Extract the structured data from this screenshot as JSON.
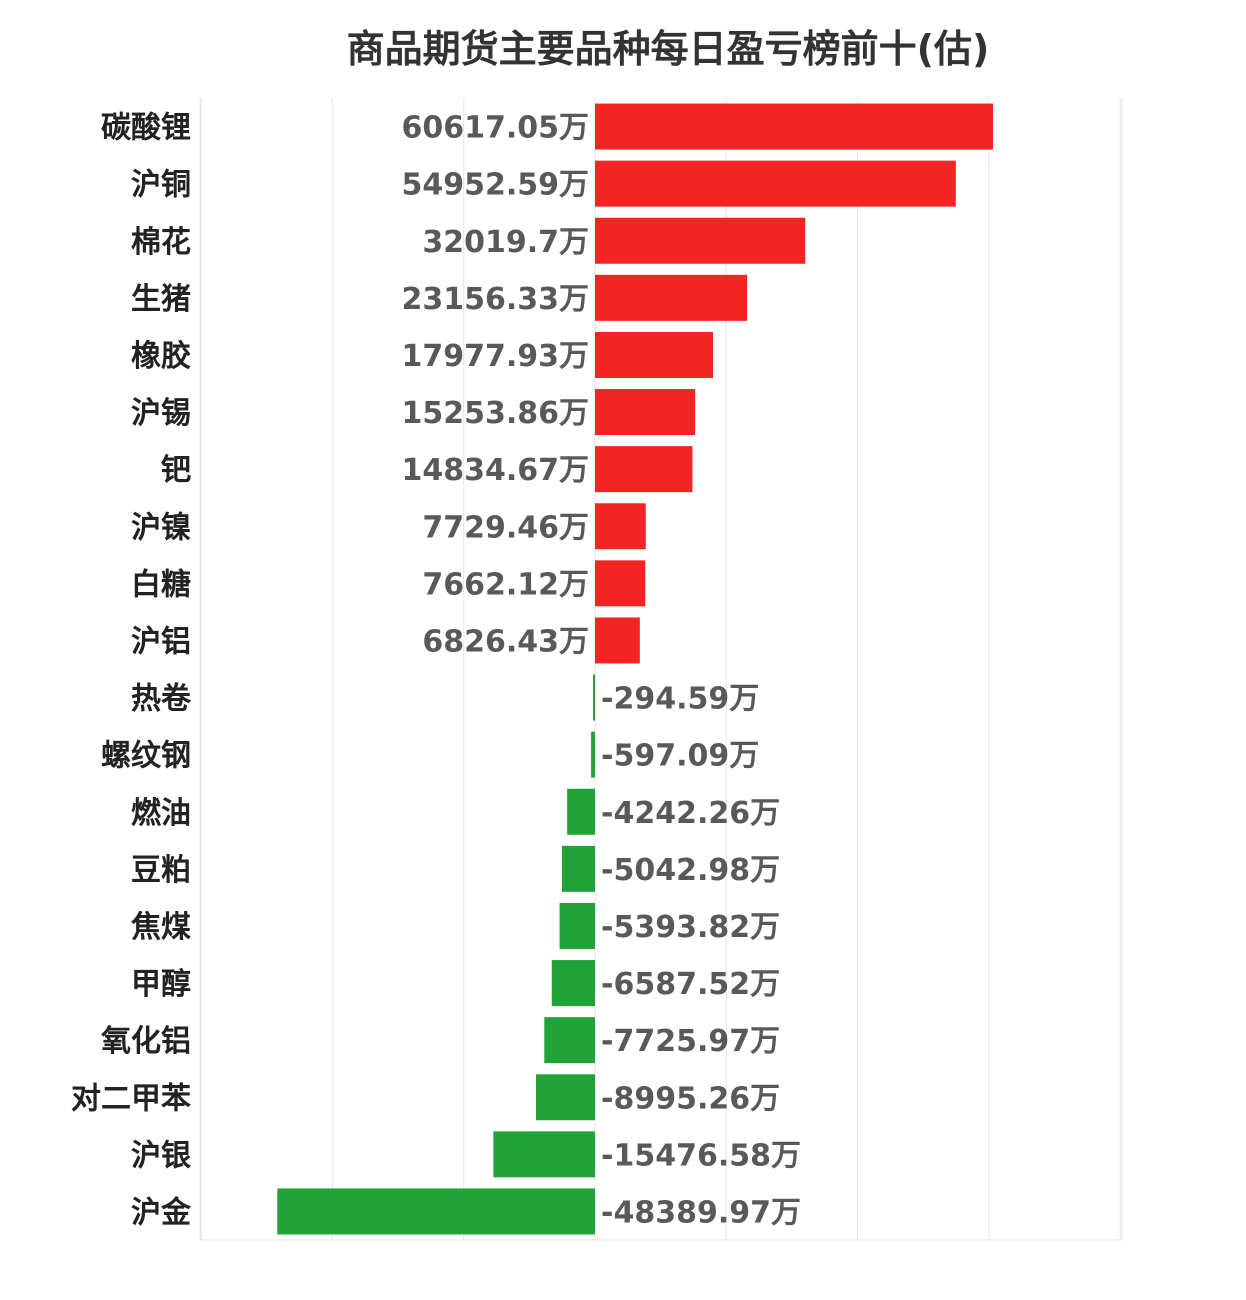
{
  "title": "商品期货主要品种每日盈亏榜前十(估)",
  "colors": {
    "positive": "#f42424",
    "negative": "#21a33a",
    "grid": "#e6e6e6",
    "category_text": "#222222",
    "value_text": "#595959"
  },
  "chart_data": {
    "type": "bar",
    "orientation": "horizontal",
    "title": "商品期货主要品种每日盈亏榜前十(估)",
    "unit": "万",
    "xlabel": "",
    "ylabel": "",
    "grid": true,
    "xlim": [
      -60000,
      80000
    ],
    "categories": [
      "碳酸锂",
      "沪铜",
      "棉花",
      "生猪",
      "橡胶",
      "沪锡",
      "钯",
      "沪镍",
      "白糖",
      "沪铝",
      "热卷",
      "螺纹钢",
      "燃油",
      "豆粕",
      "焦煤",
      "甲醇",
      "氧化铝",
      "对二甲苯",
      "沪银",
      "沪金"
    ],
    "values": [
      60617.05,
      54952.59,
      32019.7,
      23156.33,
      17977.93,
      15253.86,
      14834.67,
      7729.46,
      7662.12,
      6826.43,
      -294.59,
      -597.09,
      -4242.26,
      -5042.98,
      -5393.82,
      -6587.52,
      -7725.97,
      -8995.26,
      -15476.58,
      -48389.97
    ],
    "labels": [
      "60617.05万",
      "54952.59万",
      "32019.7万",
      "23156.33万",
      "17977.93万",
      "15253.86万",
      "14834.67万",
      "7729.46万",
      "7662.12万",
      "6826.43万",
      "-294.59万",
      "-597.09万",
      "-4242.26万",
      "-5042.98万",
      "-5393.82万",
      "-6587.52万",
      "-7725.97万",
      "-8995.26万",
      "-15476.58万",
      "-48389.97万"
    ]
  }
}
